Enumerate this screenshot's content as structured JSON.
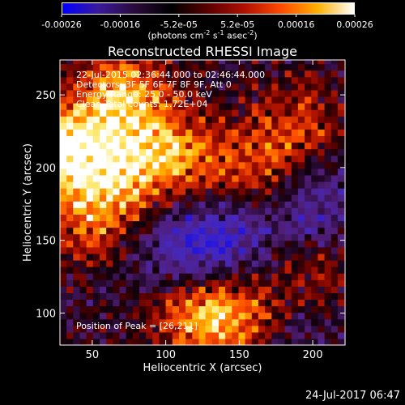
{
  "colorbar": {
    "ticks": [
      "-0.00026",
      "-0.00016",
      "-5.2e-05",
      "5.2e-05",
      "0.00016",
      "0.00026"
    ],
    "units_main": "(photons cm",
    "units_exp1": "-2",
    "units_mid": " s",
    "units_exp2": "-1",
    "units_end": " asec",
    "units_exp3": "-2",
    "units_close": ")",
    "colors": [
      "#0000ff",
      "#3a1a9a",
      "#2a0a3a",
      "#000000",
      "#5a0000",
      "#b01000",
      "#ff4a00",
      "#ffb000",
      "#ffffff"
    ]
  },
  "title": "Reconstructed RHESSI Image",
  "annotations": {
    "time_range": "22-Jul-2015 02:36:44.000 to 02:46:44.000",
    "detectors": "Detectors: 3F 5F 6F 7F 8F 9F, Att 0",
    "energy": "Energy Range: 25.0 - 50.0 keV",
    "clean": "Clean     Total counts: 1.72E+04",
    "peak": "Position of Peak = [26,211]"
  },
  "footer_timestamp": "24-Jul-2017 06:47",
  "chart_data": {
    "type": "heatmap",
    "title": "Reconstructed RHESSI Image",
    "xlabel": "Heliocentric X (arcsec)",
    "ylabel": "Heliocentric Y (arcsec)",
    "xlim": [
      28,
      222
    ],
    "ylim": [
      78,
      274
    ],
    "xticks": [
      50,
      100,
      150,
      200
    ],
    "yticks": [
      100,
      150,
      200,
      250
    ],
    "color_range": [
      -0.00026,
      0.00026
    ],
    "colormap": "blue-purple-black-red-yellow-white",
    "peak_position": [
      26,
      211
    ],
    "hot_regions": [
      {
        "x": 28,
        "y": 213,
        "level": 1.0
      },
      {
        "x": 70,
        "y": 250,
        "level": 0.8
      },
      {
        "x": 70,
        "y": 200,
        "level": 0.7
      },
      {
        "x": 110,
        "y": 210,
        "level": 0.65
      },
      {
        "x": 120,
        "y": 100,
        "level": 0.75
      },
      {
        "x": 155,
        "y": 100,
        "level": 0.7
      },
      {
        "x": 160,
        "y": 195,
        "level": 0.5
      },
      {
        "x": 50,
        "y": 165,
        "level": 0.55
      },
      {
        "x": 190,
        "y": 230,
        "level": 0.45
      },
      {
        "x": 200,
        "y": 130,
        "level": 0.45
      }
    ],
    "cold_regions": [
      {
        "x": 140,
        "y": 150,
        "level": -0.5
      },
      {
        "x": 200,
        "y": 170,
        "level": -0.45
      },
      {
        "x": 110,
        "y": 140,
        "level": -0.4
      },
      {
        "x": 180,
        "y": 95,
        "level": -0.35
      }
    ]
  }
}
